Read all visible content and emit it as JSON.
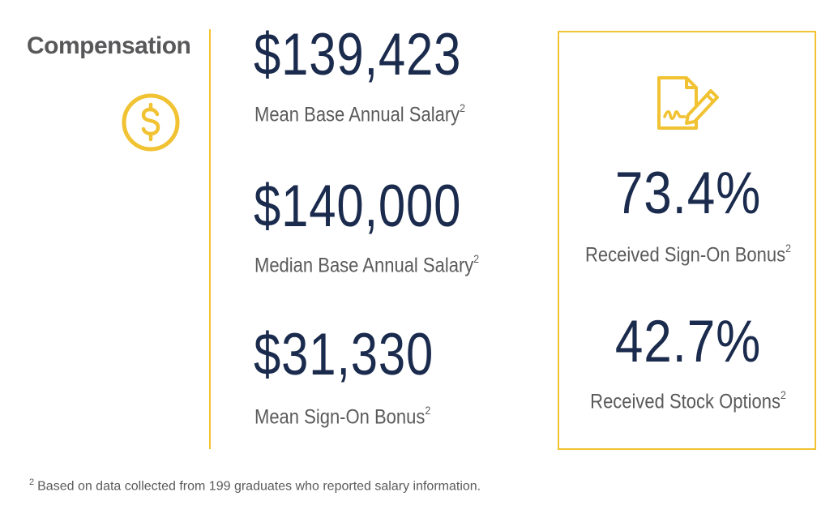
{
  "section": {
    "title": "Compensation",
    "icon": "dollar-circle-icon",
    "accent_color": "#f1c232",
    "value_color": "#1b2b4d"
  },
  "stats": {
    "mean_salary": {
      "value": "$139,423",
      "label": "Mean Base Annual Salary",
      "note": "2"
    },
    "median_salary": {
      "value": "$140,000",
      "label": "Median Base Annual Salary",
      "note": "2"
    },
    "mean_bonus": {
      "value": "$31,330",
      "label": "Mean Sign-On Bonus",
      "note": "2"
    }
  },
  "highlights": {
    "icon": "signed-contract-icon",
    "signon_bonus": {
      "value": "73.4%",
      "label": "Received Sign-On Bonus",
      "note": "2"
    },
    "stock_options": {
      "value": "42.7%",
      "label": "Received Stock Options",
      "note": "2"
    }
  },
  "footnote": {
    "marker": "2",
    "text": "Based on data collected from 199 graduates who reported salary information."
  }
}
